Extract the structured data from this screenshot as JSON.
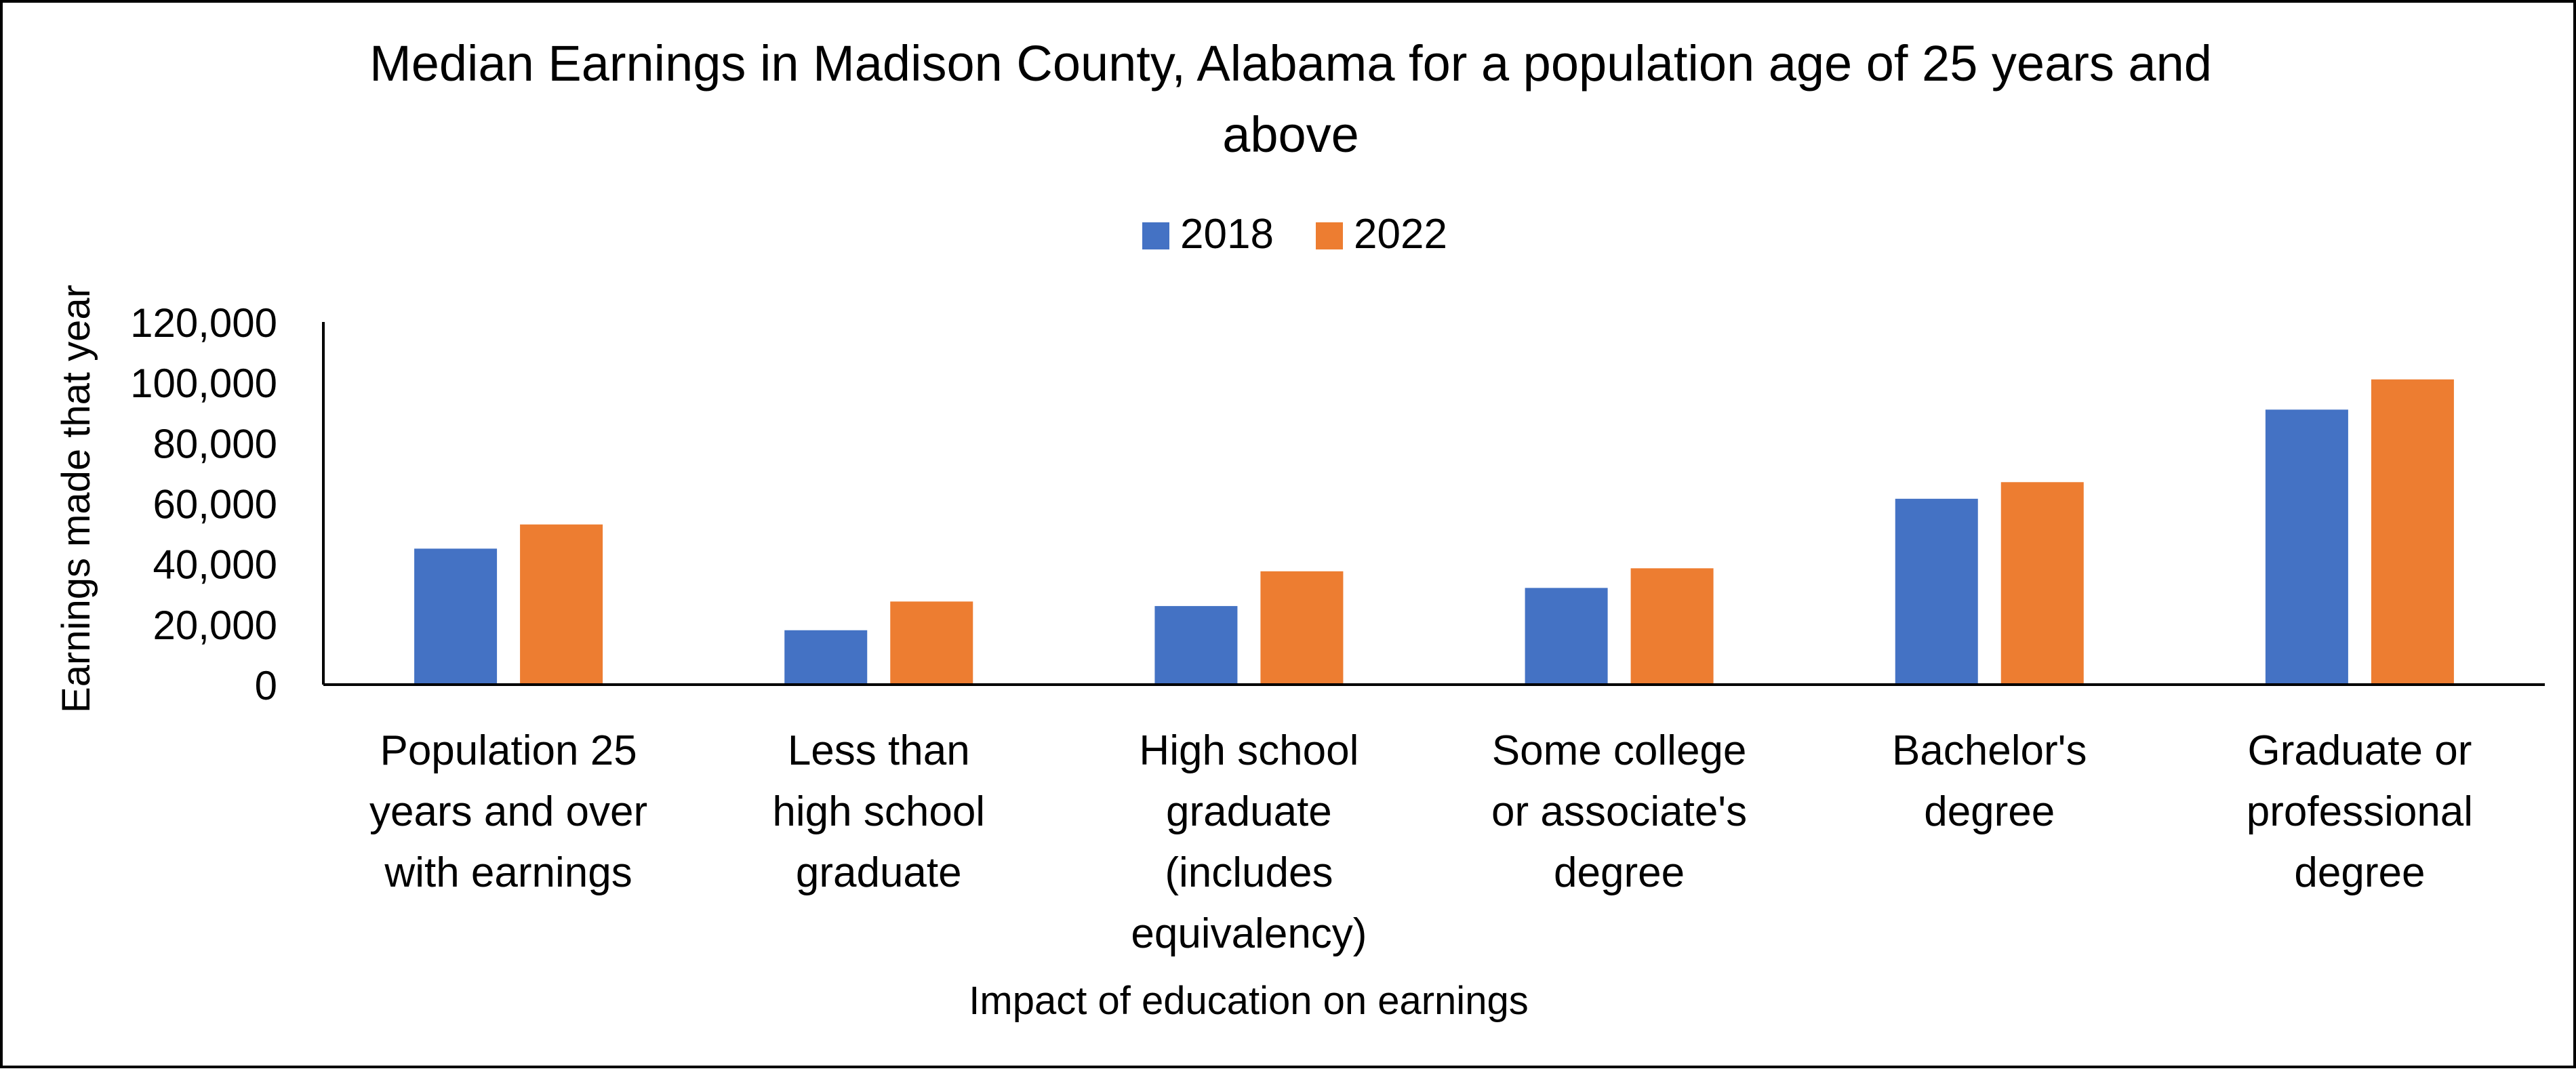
{
  "chart_data": {
    "type": "bar",
    "title_lines": [
      "Median Earnings in Madison County, Alabama for a population age of 25 years and",
      "above"
    ],
    "xlabel": "Impact of education on earnings",
    "ylabel": "Earnings made that year",
    "categories": [
      [
        "Population 25",
        "years and over",
        "with earnings"
      ],
      [
        "Less than",
        "high school",
        "graduate"
      ],
      [
        "High school",
        "graduate",
        "(includes",
        "equivalency)"
      ],
      [
        "Some college",
        "or associate's",
        "degree"
      ],
      [
        "Bachelor's",
        "degree"
      ],
      [
        "Graduate or",
        "professional",
        "degree"
      ]
    ],
    "series": [
      {
        "name": "2018",
        "color": "#4472C4",
        "values": [
          45000,
          18000,
          26000,
          32000,
          61500,
          91000
        ]
      },
      {
        "name": "2022",
        "color": "#ED7D31",
        "values": [
          53000,
          27500,
          37500,
          38500,
          67000,
          101000
        ]
      }
    ],
    "ylim": [
      0,
      120000
    ],
    "yticks": [
      0,
      20000,
      40000,
      60000,
      80000,
      100000,
      120000
    ],
    "ytick_labels": [
      "0",
      "20,000",
      "40,000",
      "60,000",
      "80,000",
      "100,000",
      "120,000"
    ],
    "grid": false,
    "legend_position": "top-center"
  }
}
